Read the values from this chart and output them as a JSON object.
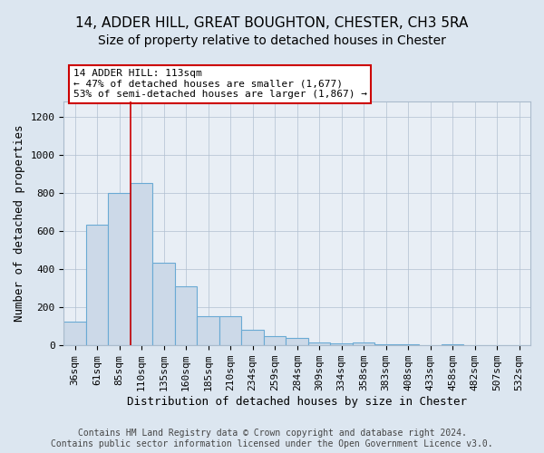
{
  "title_line1": "14, ADDER HILL, GREAT BOUGHTON, CHESTER, CH3 5RA",
  "title_line2": "Size of property relative to detached houses in Chester",
  "xlabel": "Distribution of detached houses by size in Chester",
  "ylabel": "Number of detached properties",
  "footnote": "Contains HM Land Registry data © Crown copyright and database right 2024.\nContains public sector information licensed under the Open Government Licence v3.0.",
  "bar_labels": [
    "36sqm",
    "61sqm",
    "85sqm",
    "110sqm",
    "135sqm",
    "160sqm",
    "185sqm",
    "210sqm",
    "234sqm",
    "259sqm",
    "284sqm",
    "309sqm",
    "334sqm",
    "358sqm",
    "383sqm",
    "408sqm",
    "433sqm",
    "458sqm",
    "482sqm",
    "507sqm",
    "532sqm"
  ],
  "bar_values": [
    125,
    635,
    800,
    850,
    435,
    310,
    155,
    155,
    80,
    50,
    40,
    15,
    10,
    15,
    5,
    5,
    3,
    5,
    3,
    3,
    2
  ],
  "bar_color": "#ccd9e8",
  "bar_edge_color": "#6aaad4",
  "vline_color": "#cc0000",
  "vline_x_index": 3,
  "annotation_text": "14 ADDER HILL: 113sqm\n← 47% of detached houses are smaller (1,677)\n53% of semi-detached houses are larger (1,867) →",
  "annotation_box_color": "#ffffff",
  "annotation_box_edge_color": "#cc0000",
  "ylim": [
    0,
    1280
  ],
  "yticks": [
    0,
    200,
    400,
    600,
    800,
    1000,
    1200
  ],
  "background_color": "#dce6f0",
  "plot_background_color": "#e8eef5",
  "title1_fontsize": 11,
  "title2_fontsize": 10,
  "axis_label_fontsize": 9,
  "tick_fontsize": 8,
  "footnote_fontsize": 7
}
